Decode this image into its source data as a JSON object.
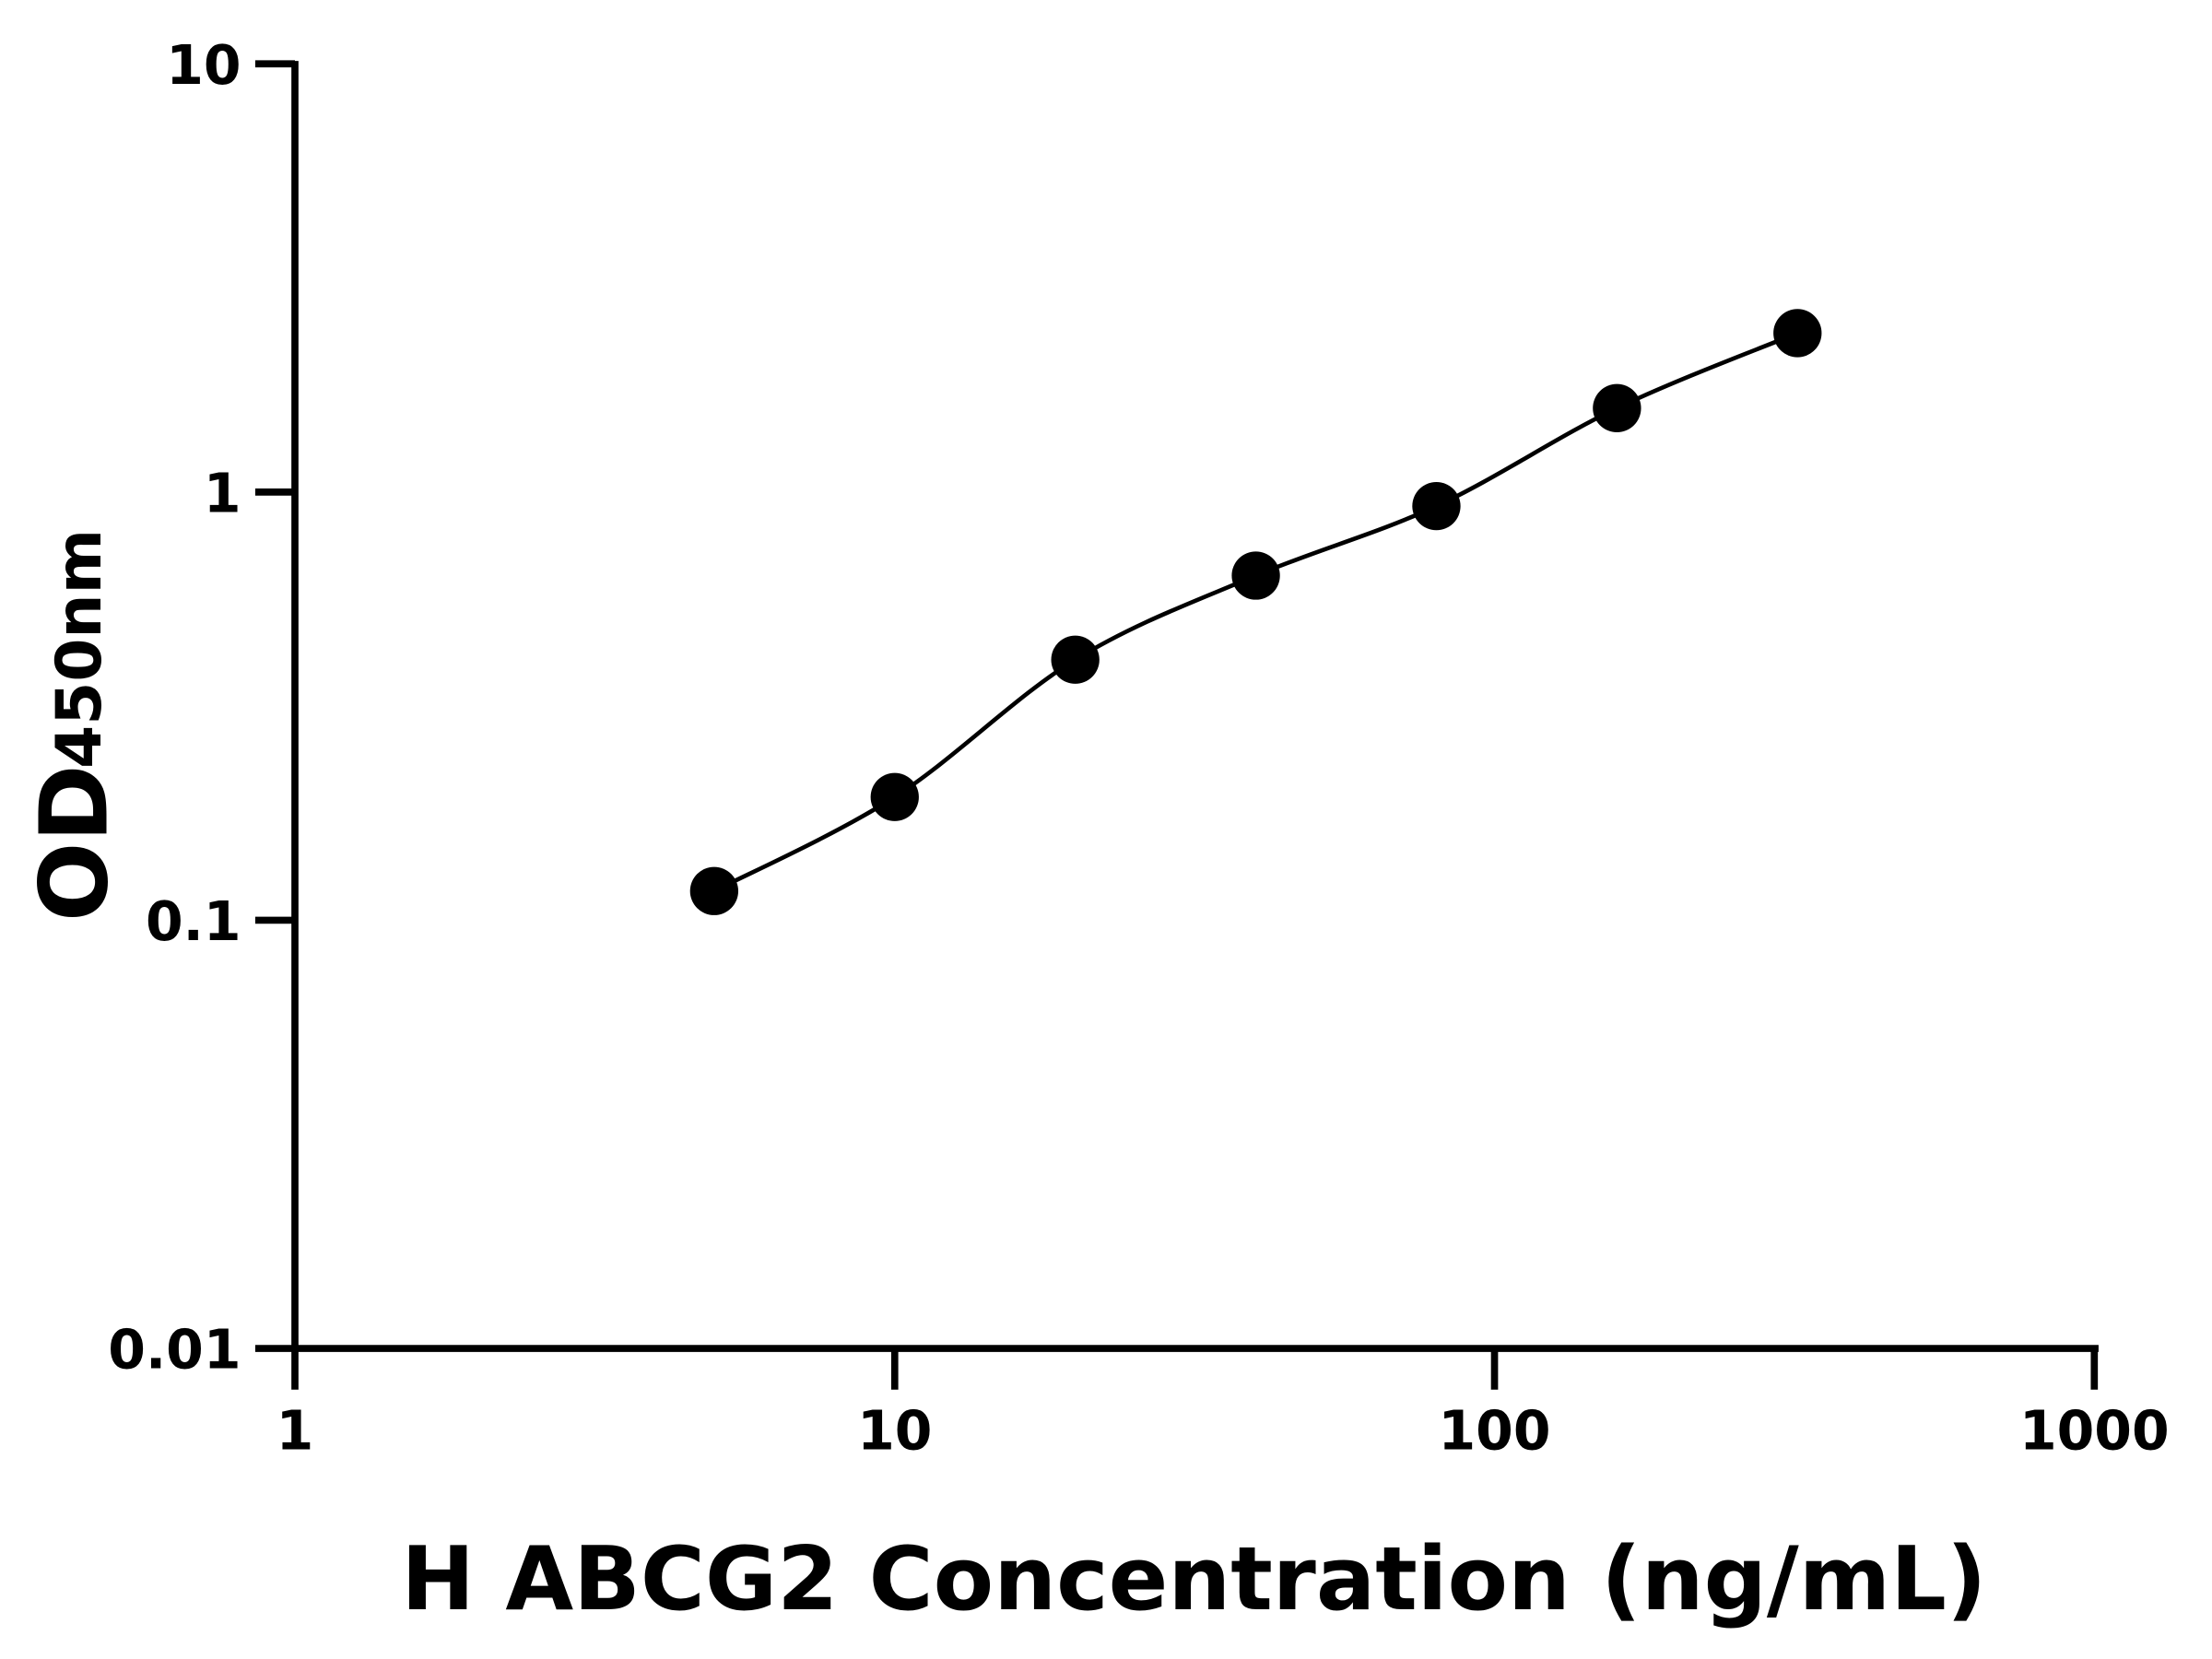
{
  "chart_data": {
    "type": "scatter",
    "title": "",
    "xlabel": "H ABCG2 Concentration (ng/mL)",
    "ylabel_main": "OD",
    "ylabel_sub": "450nm",
    "x_scale": "log",
    "y_scale": "log",
    "xlim": [
      1,
      1000
    ],
    "ylim": [
      0.01,
      10
    ],
    "x_ticks": [
      "1",
      "10",
      "100",
      "1000"
    ],
    "y_ticks": [
      "0.01",
      "0.1",
      "1",
      "10"
    ],
    "grid": false,
    "legend": "none",
    "series": [
      {
        "x": [
          5,
          10,
          20,
          40,
          80,
          160,
          320
        ],
        "y": [
          0.117,
          0.194,
          0.406,
          0.638,
          0.927,
          1.57,
          2.35
        ],
        "marker_color": "#000000",
        "fit_line": true
      }
    ]
  }
}
